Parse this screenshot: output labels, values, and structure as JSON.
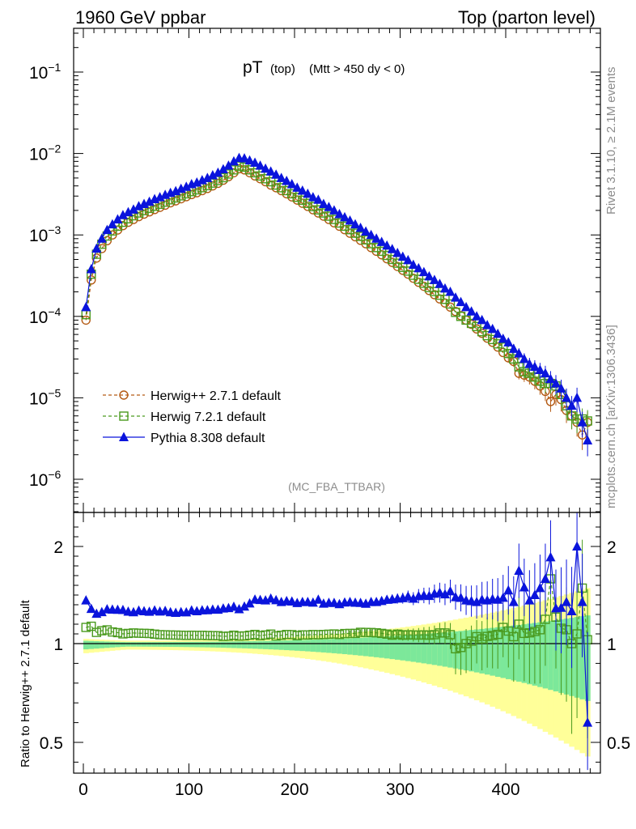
{
  "header": {
    "left": "1960 GeV ppbar",
    "right": "Top (parton level)"
  },
  "side_labels": {
    "rivet": "Rivet 3.1.10, ≥ 2.1M events",
    "mcplots": "mcplots.cern.ch [arXiv:1306.3436]"
  },
  "chart_data": {
    "type": "scatter",
    "title": {
      "main": "pT",
      "sub": "(top)",
      "cuts": "(Mtt > 450 dy < 0)"
    },
    "watermark": "(MC_FBA_TTBAR)",
    "main_panel": {
      "yscale": "log",
      "ylim": [
        3e-07,
        0.3
      ],
      "ytick_labels": [
        "10^-1",
        "10^-2",
        "10^-3",
        "10^-4",
        "10^-5",
        "10^-6"
      ],
      "legend_position": "lower-left"
    },
    "ratio_panel": {
      "ylabel": "Ratio to Herwig++ 2.7.1 default",
      "ylim": [
        0.35,
        2.3
      ],
      "ytick_labels": [
        "0.5",
        "1",
        "2"
      ]
    },
    "xlim": [
      -10,
      490
    ],
    "xtick_labels": [
      "0",
      "100",
      "200",
      "300",
      "400"
    ],
    "series": [
      {
        "name": "Herwig++ 2.7.1 default",
        "color": "#b45a14",
        "marker": "open-circle",
        "line": "dashed",
        "x": [
          2.5,
          7.5,
          12.5,
          17.5,
          22.5,
          27.5,
          32.5,
          37.5,
          42.5,
          47.5,
          52.5,
          57.5,
          62.5,
          67.5,
          72.5,
          77.5,
          82.5,
          87.5,
          92.5,
          97.5,
          102.5,
          107.5,
          112.5,
          117.5,
          122.5,
          127.5,
          132.5,
          137.5,
          142.5,
          147.5,
          152.5,
          157.5,
          162.5,
          167.5,
          172.5,
          177.5,
          182.5,
          187.5,
          192.5,
          197.5,
          202.5,
          207.5,
          212.5,
          217.5,
          222.5,
          227.5,
          232.5,
          237.5,
          242.5,
          247.5,
          252.5,
          257.5,
          262.5,
          267.5,
          272.5,
          277.5,
          282.5,
          287.5,
          292.5,
          297.5,
          302.5,
          307.5,
          312.5,
          317.5,
          322.5,
          327.5,
          332.5,
          337.5,
          342.5,
          347.5,
          352.5,
          357.5,
          362.5,
          367.5,
          372.5,
          377.5,
          382.5,
          387.5,
          392.5,
          397.5,
          402.5,
          407.5,
          412.5,
          417.5,
          422.5,
          427.5,
          432.5,
          437.5,
          442.5,
          447.5,
          452.5,
          457.5,
          462.5,
          467.5,
          472.5,
          477.5
        ],
        "y": [
          9e-05,
          0.00028,
          0.00052,
          0.00068,
          0.00085,
          0.001,
          0.00115,
          0.0013,
          0.00143,
          0.00155,
          0.00168,
          0.0018,
          0.00192,
          0.00205,
          0.00218,
          0.00232,
          0.00248,
          0.00262,
          0.00278,
          0.00295,
          0.00313,
          0.0033,
          0.0035,
          0.00372,
          0.004,
          0.0043,
          0.0047,
          0.0052,
          0.0058,
          0.0065,
          0.0063,
          0.0058,
          0.0053,
          0.0049,
          0.0045,
          0.0041,
          0.0038,
          0.0035,
          0.0032,
          0.00293,
          0.00268,
          0.00245,
          0.00224,
          0.00204,
          0.00186,
          0.0017,
          0.00155,
          0.00141,
          0.00128,
          0.00116,
          0.00105,
          0.00095,
          0.00086,
          0.00078,
          0.0007,
          0.00063,
          0.00057,
          0.00051,
          0.00046,
          0.00041,
          0.000368,
          0.00033,
          0.000294,
          0.000262,
          0.000234,
          0.000208,
          0.000185,
          0.000164,
          0.000146,
          0.00013,
          0.000115,
          0.000102,
          9e-05,
          8e-05,
          7e-05,
          6.2e-05,
          5.4e-05,
          4.8e-05,
          4.2e-05,
          3.6e-05,
          3.1e-05,
          2.8e-05,
          2e-05,
          1.9e-05,
          1.8e-05,
          1.6e-05,
          1.4e-05,
          1.2e-05,
          9e-06,
          1.1e-05,
          9.5e-06,
          7e-06,
          6e-06,
          5e-06,
          3.5e-06,
          5e-06
        ]
      },
      {
        "name": "Herwig 7.2.1 default",
        "color": "#4a9a1e",
        "marker": "open-square",
        "line": "dashed",
        "x": [
          2.5,
          7.5,
          12.5,
          17.5,
          22.5,
          27.5,
          32.5,
          37.5,
          42.5,
          47.5,
          52.5,
          57.5,
          62.5,
          67.5,
          72.5,
          77.5,
          82.5,
          87.5,
          92.5,
          97.5,
          102.5,
          107.5,
          112.5,
          117.5,
          122.5,
          127.5,
          132.5,
          137.5,
          142.5,
          147.5,
          152.5,
          157.5,
          162.5,
          167.5,
          172.5,
          177.5,
          182.5,
          187.5,
          192.5,
          197.5,
          202.5,
          207.5,
          212.5,
          217.5,
          222.5,
          227.5,
          232.5,
          237.5,
          242.5,
          247.5,
          252.5,
          257.5,
          262.5,
          267.5,
          272.5,
          277.5,
          282.5,
          287.5,
          292.5,
          297.5,
          302.5,
          307.5,
          312.5,
          317.5,
          322.5,
          327.5,
          332.5,
          337.5,
          342.5,
          347.5,
          352.5,
          357.5,
          362.5,
          367.5,
          372.5,
          377.5,
          382.5,
          387.5,
          392.5,
          397.5,
          402.5,
          407.5,
          412.5,
          417.5,
          422.5,
          427.5,
          432.5,
          437.5,
          442.5,
          447.5,
          452.5,
          457.5,
          462.5,
          467.5,
          472.5,
          477.5
        ],
        "y": [
          0.000105,
          0.00033,
          0.00058,
          0.00077,
          0.00097,
          0.00112,
          0.00128,
          0.00143,
          0.00158,
          0.00172,
          0.00186,
          0.00199,
          0.00212,
          0.00225,
          0.00238,
          0.00253,
          0.0027,
          0.00285,
          0.00302,
          0.0032,
          0.0034,
          0.00358,
          0.0038,
          0.00403,
          0.00433,
          0.00465,
          0.00505,
          0.0056,
          0.0063,
          0.007,
          0.0068,
          0.0063,
          0.0058,
          0.0053,
          0.0049,
          0.0045,
          0.0041,
          0.0038,
          0.0035,
          0.0032,
          0.0029,
          0.00267,
          0.00244,
          0.00223,
          0.00203,
          0.00186,
          0.0017,
          0.00155,
          0.0014,
          0.00128,
          0.00116,
          0.00105,
          0.00096,
          0.00087,
          0.00078,
          0.0007,
          0.00063,
          0.00056,
          0.0005,
          0.00045,
          0.0004,
          0.00036,
          0.00032,
          0.000285,
          0.000255,
          0.000226,
          0.000202,
          0.000182,
          0.000162,
          0.000142,
          0.000112,
          0.0001,
          9e-05,
          8.2e-05,
          7.5e-05,
          6.5e-05,
          5.8e-05,
          5.2e-05,
          4.6e-05,
          4.2e-05,
          3.5e-05,
          3e-05,
          2.4e-05,
          2.1e-05,
          2e-05,
          1.8e-05,
          1.6e-05,
          1.5e-05,
          1.5e-05,
          1.4e-05,
          1.1e-05,
          8e-06,
          6e-06,
          5.5e-06,
          5.5e-06,
          5.2e-06
        ]
      },
      {
        "name": "Pythia 8.308 default",
        "color": "#0a14dc",
        "marker": "filled-triangle",
        "line": "solid",
        "x": [
          2.5,
          7.5,
          12.5,
          17.5,
          22.5,
          27.5,
          32.5,
          37.5,
          42.5,
          47.5,
          52.5,
          57.5,
          62.5,
          67.5,
          72.5,
          77.5,
          82.5,
          87.5,
          92.5,
          97.5,
          102.5,
          107.5,
          112.5,
          117.5,
          122.5,
          127.5,
          132.5,
          137.5,
          142.5,
          147.5,
          152.5,
          157.5,
          162.5,
          167.5,
          172.5,
          177.5,
          182.5,
          187.5,
          192.5,
          197.5,
          202.5,
          207.5,
          212.5,
          217.5,
          222.5,
          227.5,
          232.5,
          237.5,
          242.5,
          247.5,
          252.5,
          257.5,
          262.5,
          267.5,
          272.5,
          277.5,
          282.5,
          287.5,
          292.5,
          297.5,
          302.5,
          307.5,
          312.5,
          317.5,
          322.5,
          327.5,
          332.5,
          337.5,
          342.5,
          347.5,
          352.5,
          357.5,
          362.5,
          367.5,
          372.5,
          377.5,
          382.5,
          387.5,
          392.5,
          397.5,
          402.5,
          407.5,
          412.5,
          417.5,
          422.5,
          427.5,
          432.5,
          437.5,
          442.5,
          447.5,
          452.5,
          457.5,
          462.5,
          467.5,
          472.5,
          477.5
        ],
        "y": [
          0.00013,
          0.00038,
          0.00068,
          0.0009,
          0.00115,
          0.00135,
          0.00155,
          0.00175,
          0.0019,
          0.00205,
          0.00225,
          0.0024,
          0.00255,
          0.00275,
          0.0029,
          0.0031,
          0.00328,
          0.00345,
          0.00368,
          0.0039,
          0.0042,
          0.0044,
          0.0047,
          0.005,
          0.0054,
          0.0058,
          0.0064,
          0.0071,
          0.008,
          0.0088,
          0.0087,
          0.0082,
          0.0077,
          0.0071,
          0.0065,
          0.006,
          0.0055,
          0.005,
          0.0046,
          0.0042,
          0.0038,
          0.0035,
          0.0032,
          0.0029,
          0.0027,
          0.0024,
          0.0022,
          0.002,
          0.0018,
          0.00165,
          0.0015,
          0.00135,
          0.00122,
          0.0011,
          0.001,
          0.0009,
          0.00082,
          0.00074,
          0.00067,
          0.0006,
          0.00054,
          0.00049,
          0.00043,
          0.00039,
          0.00035,
          0.00031,
          0.00028,
          0.00025,
          0.00022,
          0.0002,
          0.00017,
          0.00015,
          0.00013,
          0.000115,
          0.0001,
          9e-05,
          7.8e-05,
          7e-05,
          6.1e-05,
          5.3e-05,
          4.8e-05,
          4e-05,
          3.5e-05,
          3e-05,
          2.6e-05,
          2.4e-05,
          2.2e-05,
          2e-05,
          1.7e-05,
          1.5e-05,
          1.3e-05,
          1e-05,
          8e-06,
          1e-05,
          5e-06,
          3e-06
        ]
      }
    ]
  }
}
